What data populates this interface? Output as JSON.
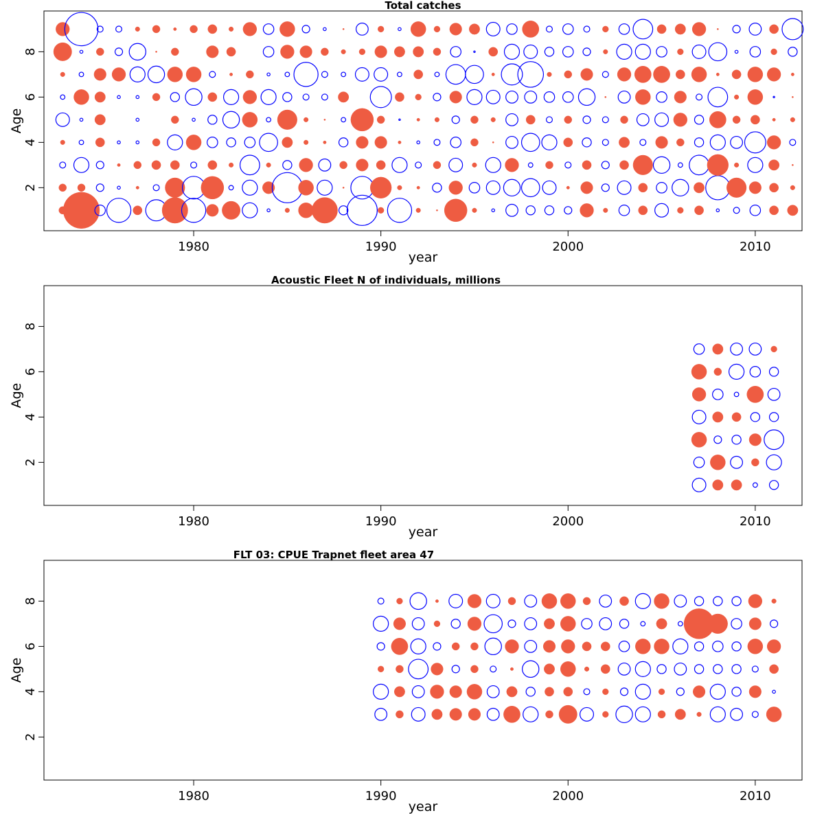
{
  "colors": {
    "positive": "#EE5C42",
    "negative": "#0000FF"
  },
  "chart_data": [
    {
      "type": "scatter",
      "subtype": "bubble",
      "title": "Total catches",
      "xlabel": "year",
      "ylabel": "Age",
      "xlim": [
        1972,
        2012.5
      ],
      "ylim": [
        0.1,
        9.8
      ],
      "xticks": [
        "1980",
        "1990",
        "2000",
        "2010"
      ],
      "yticks": [
        "2",
        "4",
        "6",
        "8"
      ],
      "x_start": 1973,
      "ages": [
        1,
        2,
        3,
        4,
        5,
        6,
        7,
        8,
        9
      ],
      "residuals": [
        [
          0.5,
          0.5,
          -0.4,
          0.3,
          -0.9,
          -0.3,
          0.3,
          1.2,
          0.9
        ],
        [
          2.4,
          0.5,
          -1.0,
          -0.3,
          -0.2,
          1.0,
          -0.3,
          -0.2,
          -2.2
        ],
        [
          -0.7,
          -0.5,
          -0.5,
          0.6,
          0.7,
          0.7,
          0.8,
          0.5,
          -0.4
        ],
        [
          -1.6,
          -0.2,
          0.2,
          -0.2,
          0.0,
          -0.2,
          0.9,
          -0.5,
          -0.4
        ],
        [
          0.6,
          0.2,
          0.5,
          -0.2,
          -0.2,
          -0.2,
          -1.0,
          -1.1,
          0.3
        ],
        [
          -1.4,
          -0.4,
          0.6,
          0.5,
          0.0,
          0.5,
          -1.1,
          0.1,
          0.5
        ],
        [
          1.7,
          1.3,
          0.6,
          -1.0,
          0.5,
          -0.6,
          1.0,
          0.5,
          0.2
        ],
        [
          -1.6,
          -1.5,
          -0.4,
          1.0,
          -0.2,
          -1.1,
          1.0,
          0.0,
          0.5
        ],
        [
          0.8,
          1.5,
          0.6,
          -0.7,
          -0.6,
          0.6,
          -0.4,
          0.8,
          0.6
        ],
        [
          1.2,
          -0.3,
          0.3,
          -0.6,
          -1.1,
          -1.0,
          0.2,
          0.6,
          0.3
        ],
        [
          -1.0,
          -1.0,
          -1.3,
          -0.7,
          1.0,
          0.9,
          0.5,
          0.0,
          0.9
        ],
        [
          -0.2,
          0.8,
          0.3,
          -1.2,
          -0.3,
          -1.0,
          -0.2,
          -0.7,
          -0.7
        ],
        [
          0.3,
          -2.0,
          -0.6,
          0.7,
          1.3,
          -0.6,
          -0.3,
          0.9,
          1.0
        ],
        [
          1.0,
          1.0,
          0.9,
          0.3,
          0.3,
          -0.4,
          -1.6,
          0.8,
          -0.5
        ],
        [
          1.7,
          -1.0,
          -0.8,
          0.2,
          0.1,
          -0.4,
          -0.4,
          0.5,
          -0.2
        ],
        [
          -0.6,
          0.1,
          0.5,
          -0.6,
          -0.3,
          0.7,
          -0.3,
          0.3,
          0.1
        ],
        [
          -2.0,
          -1.5,
          0.8,
          0.8,
          1.5,
          0.0,
          -0.9,
          0.4,
          -0.8
        ],
        [
          0.4,
          1.4,
          0.6,
          0.8,
          0.5,
          -1.4,
          -0.9,
          0.8,
          0.4
        ],
        [
          -1.6,
          0.3,
          -1.0,
          0.2,
          -0.1,
          0.6,
          -0.3,
          0.7,
          -0.2
        ],
        [
          0.3,
          0.2,
          -0.4,
          -0.2,
          0.2,
          0.4,
          0.6,
          0.7,
          1.0
        ],
        [
          0.1,
          -0.6,
          0.5,
          -0.4,
          0.3,
          -0.5,
          -0.3,
          0.5,
          0.4
        ],
        [
          1.5,
          0.9,
          -0.9,
          -0.7,
          -0.5,
          0.8,
          -1.3,
          -0.7,
          0.8
        ],
        [
          0.3,
          -0.7,
          0.3,
          0.5,
          0.5,
          -1.0,
          -1.2,
          -0.1,
          0.7
        ],
        [
          -0.2,
          -0.9,
          -1.0,
          0.1,
          0.3,
          -0.9,
          0.2,
          0.6,
          -0.9
        ],
        [
          -0.8,
          -1.1,
          0.9,
          -0.8,
          -0.8,
          -0.8,
          -1.4,
          -1.0,
          -0.7
        ],
        [
          -0.6,
          -1.2,
          -0.3,
          -1.2,
          0.6,
          -0.8,
          -1.7,
          -0.9,
          1.1
        ],
        [
          -0.6,
          -0.9,
          0.5,
          -1.0,
          -0.4,
          -0.7,
          0.3,
          -0.6,
          -0.4
        ],
        [
          -0.5,
          0.2,
          -0.4,
          0.6,
          0.5,
          -0.7,
          0.5,
          -0.7,
          -0.7
        ],
        [
          0.9,
          0.8,
          0.6,
          -0.6,
          -0.5,
          -1.1,
          0.8,
          -0.5,
          -0.4
        ],
        [
          0.3,
          -0.5,
          -0.5,
          -0.4,
          -0.4,
          0.1,
          -0.4,
          0.3,
          0.4
        ],
        [
          -0.7,
          -0.9,
          0.6,
          0.7,
          0.5,
          -0.8,
          0.9,
          -1.0,
          -0.7
        ],
        [
          0.6,
          0.6,
          1.3,
          -0.4,
          -0.8,
          1.0,
          1.1,
          -1.0,
          -1.3
        ],
        [
          -0.9,
          -0.7,
          -1.1,
          0.8,
          -0.9,
          -0.7,
          1.1,
          -0.7,
          0.6
        ],
        [
          0.4,
          -1.1,
          -0.3,
          0.5,
          0.9,
          0.8,
          0.6,
          0.4,
          0.7
        ],
        [
          0.6,
          0.7,
          -1.3,
          -0.6,
          -0.6,
          -0.4,
          1.0,
          -0.9,
          0.9
        ],
        [
          -0.2,
          -1.6,
          1.4,
          -1.0,
          1.1,
          -1.3,
          0.2,
          -1.2,
          0.1
        ],
        [
          -0.4,
          1.3,
          0.3,
          -0.8,
          0.5,
          0.3,
          0.6,
          -0.2,
          -0.5
        ],
        [
          -0.7,
          0.8,
          -1.0,
          -1.4,
          0.6,
          1.0,
          1.0,
          -0.7,
          -0.8
        ],
        [
          0.6,
          0.6,
          0.7,
          0.9,
          0.2,
          -0.1,
          0.9,
          0.4,
          0.6
        ],
        [
          0.7,
          0.3,
          0.1,
          -0.4,
          0.3,
          0.1,
          0.2,
          -0.6,
          -1.4
        ]
      ],
      "radius_scale": 0.0
    },
    {
      "type": "scatter",
      "subtype": "bubble",
      "title": "Acoustic Fleet  N of individuals, millions",
      "xlabel": "year",
      "ylabel": "Age",
      "xlim": [
        1972,
        2012.5
      ],
      "ylim": [
        0.1,
        9.8
      ],
      "xticks": [
        "1980",
        "1990",
        "2000",
        "2010"
      ],
      "yticks": [
        "2",
        "4",
        "6",
        "8"
      ],
      "x_start": 2007,
      "ages": [
        1,
        2,
        3,
        4,
        5,
        6,
        7
      ],
      "residuals": [
        [
          -0.9,
          -0.7,
          1.0,
          -0.9,
          0.9,
          1.0,
          -0.7
        ],
        [
          0.7,
          1.0,
          -0.5,
          0.7,
          -0.7,
          0.5,
          0.7
        ],
        [
          0.7,
          -0.8,
          -0.6,
          0.6,
          -0.3,
          -1.0,
          -0.8
        ],
        [
          -0.3,
          0.5,
          0.8,
          -0.6,
          1.1,
          -0.7,
          -0.8
        ],
        [
          -0.6,
          -1.0,
          -1.3,
          -0.6,
          -0.8,
          -0.6,
          0.4
        ]
      ]
    },
    {
      "type": "scatter",
      "subtype": "bubble",
      "title": "FLT 03: CPUE Trapnet fleet area 47",
      "xlabel": "year",
      "ylabel": "Age",
      "xlim": [
        1972,
        2012.5
      ],
      "ylim": [
        0.1,
        9.8
      ],
      "xticks": [
        "1980",
        "1990",
        "2000",
        "2010"
      ],
      "yticks": [
        "2",
        "4",
        "6",
        "8"
      ],
      "x_start": 1990,
      "ages": [
        3,
        4,
        5,
        6,
        7,
        8
      ],
      "residuals": [
        [
          -0.8,
          -1.0,
          0.4,
          -0.5,
          -1.0,
          -0.4
        ],
        [
          0.5,
          0.7,
          0.5,
          1.1,
          0.8,
          0.4
        ],
        [
          -0.9,
          -0.8,
          -1.3,
          -1.0,
          -0.8,
          -1.1
        ],
        [
          0.7,
          0.9,
          0.8,
          -0.5,
          0.4,
          0.2
        ],
        [
          0.8,
          0.8,
          -0.5,
          0.5,
          -0.6,
          -0.9
        ],
        [
          0.8,
          1.0,
          0.5,
          0.5,
          0.9,
          0.9
        ],
        [
          -0.8,
          -0.8,
          -0.4,
          -1.1,
          -1.2,
          -0.9
        ],
        [
          1.1,
          0.7,
          0.2,
          0.9,
          -0.5,
          0.5
        ],
        [
          -1.0,
          -0.6,
          -1.1,
          -0.8,
          -0.8,
          -0.8
        ],
        [
          0.5,
          0.6,
          0.7,
          0.8,
          0.7,
          1.0
        ],
        [
          1.2,
          0.6,
          1.0,
          0.9,
          1.0,
          1.0
        ],
        [
          -0.9,
          -0.4,
          0.3,
          0.6,
          -0.7,
          0.5
        ],
        [
          0.4,
          0.4,
          0.6,
          0.6,
          -0.8,
          -0.8
        ],
        [
          -1.1,
          -0.5,
          -0.8,
          -0.7,
          -0.6,
          0.6
        ],
        [
          -1.0,
          -1.0,
          -1.0,
          1.0,
          -0.3,
          -1.0
        ],
        [
          0.5,
          0.4,
          -0.6,
          1.0,
          0.7,
          1.0
        ],
        [
          0.7,
          -0.5,
          -0.8,
          -1.0,
          -0.3,
          -0.8
        ],
        [
          0.3,
          0.8,
          -0.6,
          -0.6,
          2.0,
          -0.6
        ],
        [
          -1.0,
          -1.0,
          -0.6,
          -0.7,
          1.3,
          -0.6
        ],
        [
          -0.8,
          -0.6,
          -0.6,
          -0.6,
          -0.7,
          -0.6
        ],
        [
          -0.4,
          0.8,
          -0.4,
          1.0,
          0.8,
          0.9
        ],
        [
          1.0,
          -0.2,
          0.6,
          0.9,
          -0.5,
          0.3
        ]
      ]
    }
  ]
}
